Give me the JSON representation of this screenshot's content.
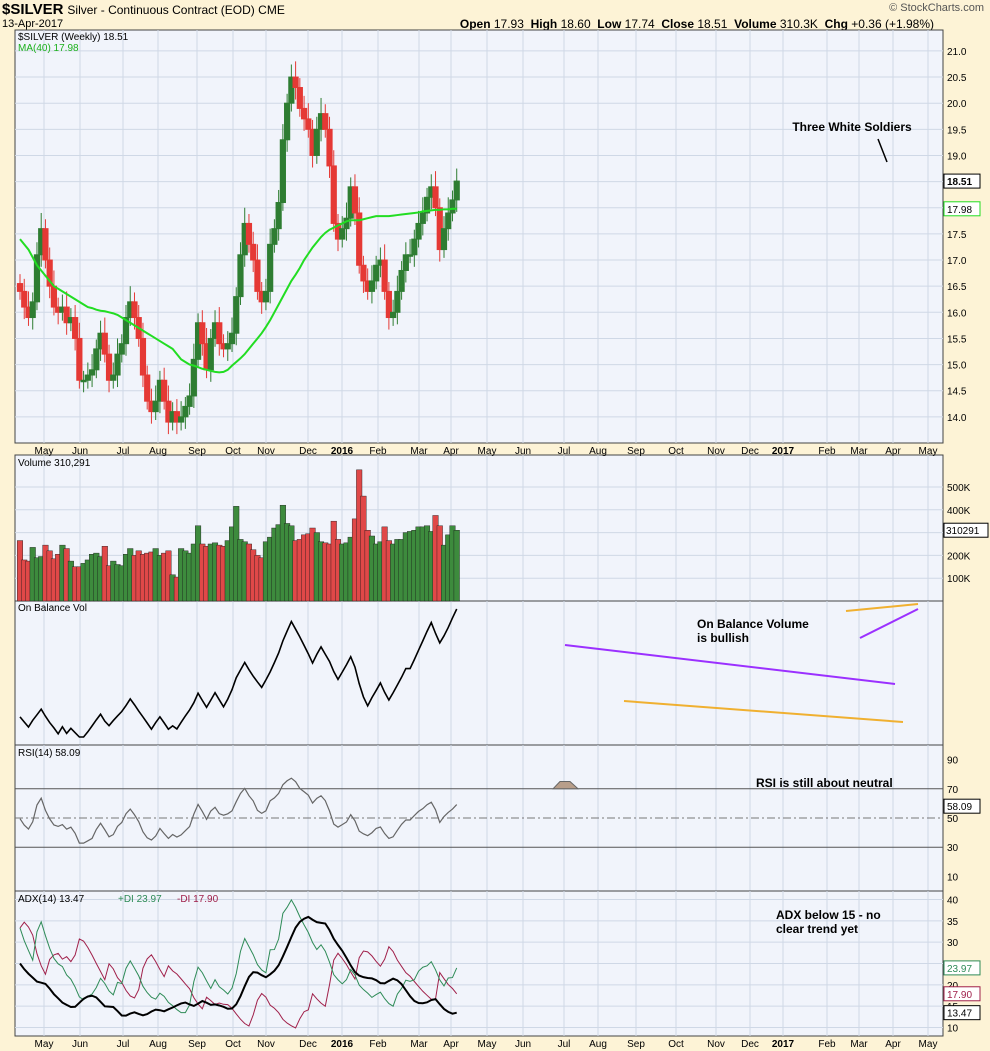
{
  "header": {
    "symbol": "$SILVER",
    "description": "Silver - Continuous Contract (EOD)",
    "exchange": "CME",
    "date": "13-Apr-2017",
    "credit": "© StockCharts.com",
    "ohlc": {
      "open_label": "Open",
      "open": "17.93",
      "high_label": "High",
      "high": "18.60",
      "low_label": "Low",
      "low": "17.74",
      "close_label": "Close",
      "close": "18.51",
      "volume_label": "Volume",
      "volume": "310.3K",
      "chg_label": "Chg",
      "chg": "+0.36 (+1.98%)"
    }
  },
  "colors": {
    "up": "#2e7d32",
    "down": "#e53935",
    "ma": "#22dd22",
    "obv": "#000000",
    "rsi": "#666666",
    "adx": "#000000",
    "pdi": "#2e8b57",
    "mdi": "#a0204a",
    "purple": "#9b30ff",
    "orange": "#f0b030"
  },
  "chart_data": [
    {
      "type": "candlestick",
      "legend": [
        "$SILVER (Weekly) 18.51",
        "MA(40) 17.98"
      ],
      "ylim": [
        13.5,
        21.4
      ],
      "y_ticks": [
        14.0,
        14.5,
        15.0,
        15.5,
        16.0,
        16.5,
        17.0,
        17.5,
        18.0,
        18.5,
        19.0,
        19.5,
        20.0,
        20.5,
        21.0
      ],
      "y_tick_labels": [
        "14.0",
        "14.5",
        "15.0",
        "15.5",
        "16.0",
        "16.5",
        "17.0",
        "17.5",
        "18.0",
        "18.5",
        "19.0",
        "19.5",
        "20.0",
        "20.5",
        "21.0"
      ],
      "last_price_label": "18.51",
      "ma_label": "17.98",
      "annotation": "Three White Soldiers",
      "closes": [
        16.4,
        16.1,
        15.9,
        16.2,
        17.1,
        17.6,
        17.0,
        16.5,
        16.1,
        16.0,
        16.1,
        15.8,
        15.9,
        15.5,
        14.7,
        14.7,
        14.8,
        14.9,
        15.3,
        15.6,
        15.2,
        14.7,
        14.8,
        15.2,
        15.4,
        15.9,
        16.2,
        15.9,
        15.5,
        14.8,
        14.3,
        14.1,
        14.3,
        14.7,
        14.3,
        13.9,
        14.1,
        13.9,
        14.0,
        14.2,
        14.4,
        15.1,
        15.8,
        15.4,
        14.9,
        15.5,
        15.8,
        15.4,
        15.3,
        15.4,
        15.6,
        16.3,
        17.1,
        17.7,
        17.3,
        17.0,
        16.4,
        16.2,
        16.4,
        17.3,
        17.6,
        18.1,
        19.3,
        20.0,
        20.5,
        20.3,
        19.9,
        19.7,
        19.5,
        19.0,
        19.5,
        19.8,
        19.5,
        18.8,
        17.7,
        17.4,
        17.6,
        17.8,
        18.4,
        17.9,
        16.9,
        16.6,
        16.4,
        16.6,
        16.9,
        17.0,
        16.4,
        15.9,
        16.0,
        16.4,
        16.8,
        17.1,
        17.1,
        17.4,
        17.7,
        17.9,
        18.2,
        18.4,
        18.0,
        17.2,
        17.6,
        17.9,
        18.15,
        18.51
      ],
      "ma40": [
        17.4,
        17.3,
        17.2,
        17.05,
        16.9,
        16.8,
        16.7,
        16.6,
        16.5,
        16.45,
        16.4,
        16.35,
        16.3,
        16.25,
        16.2,
        16.15,
        16.1,
        16.08,
        16.05,
        16.03,
        16.02,
        16.0,
        15.98,
        15.95,
        15.9,
        15.85,
        15.8,
        15.75,
        15.7,
        15.65,
        15.6,
        15.55,
        15.5,
        15.45,
        15.4,
        15.35,
        15.3,
        15.2,
        15.1,
        15.05,
        15.0,
        14.98,
        14.95,
        14.92,
        14.9,
        14.88,
        14.86,
        14.85,
        14.86,
        14.9,
        14.98,
        15.05,
        15.12,
        15.2,
        15.3,
        15.4,
        15.5,
        15.6,
        15.72,
        15.85,
        16.0,
        16.15,
        16.3,
        16.45,
        16.6,
        16.72,
        16.85,
        17.0,
        17.12,
        17.24,
        17.34,
        17.44,
        17.52,
        17.58,
        17.62,
        17.66,
        17.7,
        17.74,
        17.76,
        17.76,
        17.76,
        17.78,
        17.8,
        17.82,
        17.84,
        17.84,
        17.84,
        17.84,
        17.85,
        17.86,
        17.87,
        17.88,
        17.89,
        17.9,
        17.91,
        17.93,
        17.94,
        17.95,
        17.96,
        17.96,
        17.97,
        17.97,
        17.98,
        17.98
      ]
    },
    {
      "type": "bar",
      "legend": "Volume 310,291",
      "ylim": [
        0,
        640000
      ],
      "y_ticks": [
        100000,
        200000,
        300000,
        400000,
        500000
      ],
      "y_tick_labels": [
        "100K",
        "200K",
        "300K",
        "400K",
        "500K"
      ],
      "last_value_label": "310291",
      "values": [
        265000,
        180000,
        175000,
        235000,
        190000,
        195000,
        245000,
        220000,
        185000,
        205000,
        245000,
        230000,
        175000,
        150000,
        150000,
        165000,
        180000,
        205000,
        210000,
        195000,
        240000,
        155000,
        175000,
        160000,
        155000,
        205000,
        230000,
        200000,
        220000,
        205000,
        210000,
        215000,
        230000,
        200000,
        210000,
        220000,
        115000,
        105000,
        230000,
        220000,
        210000,
        250000,
        330000,
        250000,
        240000,
        250000,
        255000,
        245000,
        240000,
        265000,
        325000,
        415000,
        270000,
        260000,
        250000,
        225000,
        200000,
        190000,
        260000,
        280000,
        320000,
        335000,
        420000,
        340000,
        330000,
        265000,
        270000,
        290000,
        295000,
        320000,
        300000,
        260000,
        255000,
        250000,
        350000,
        270000,
        250000,
        255000,
        280000,
        360000,
        575000,
        460000,
        310000,
        285000,
        250000,
        260000,
        325000,
        265000,
        250000,
        270000,
        270000,
        300000,
        305000,
        310000,
        325000,
        325000,
        330000,
        305000,
        375000,
        330000,
        245000,
        290000,
        330000,
        310291
      ]
    },
    {
      "type": "line",
      "legend": "On Balance Vol",
      "annotation": "On Balance Volume is bullish"
    },
    {
      "type": "line",
      "legend": "RSI(14) 58.09",
      "ylim": [
        0,
        100
      ],
      "y_ticks": [
        10,
        30,
        50,
        70,
        90
      ],
      "y_tick_labels": [
        "10",
        "30",
        "50",
        "70",
        "90"
      ],
      "last_value_label": "58.09",
      "annotation": "RSI is still about neutral"
    },
    {
      "type": "line",
      "legend": {
        "adx": "ADX(14) 13.47",
        "pdi": "+DI 23.97",
        "mdi": "-DI 17.90"
      },
      "ylim": [
        8,
        42
      ],
      "y_ticks": [
        10,
        15,
        20,
        25,
        30,
        35,
        40
      ],
      "y_tick_labels": [
        "10",
        "15",
        "20",
        "25",
        "30",
        "35",
        "40"
      ],
      "last_value_labels": {
        "pdi": "23.97",
        "mdi": "17.90",
        "adx": "13.47"
      },
      "annotation": [
        "ADX below 15 - no",
        "clear trend yet"
      ]
    }
  ],
  "x_axis": {
    "labels": [
      {
        "text": "May"
      },
      {
        "text": "Jun"
      },
      {
        "text": "Jul"
      },
      {
        "text": "Aug"
      },
      {
        "text": "Sep"
      },
      {
        "text": "Oct"
      },
      {
        "text": "Nov"
      },
      {
        "text": "Dec"
      },
      {
        "text": "2016",
        "bold": true
      },
      {
        "text": "Feb"
      },
      {
        "text": "Mar"
      },
      {
        "text": "Apr"
      },
      {
        "text": "May"
      },
      {
        "text": "Jun"
      },
      {
        "text": "Jul"
      },
      {
        "text": "Aug"
      },
      {
        "text": "Sep"
      },
      {
        "text": "Oct"
      },
      {
        "text": "Nov"
      },
      {
        "text": "Dec"
      },
      {
        "text": "2017",
        "bold": true
      },
      {
        "text": "Feb"
      },
      {
        "text": "Mar"
      },
      {
        "text": "Apr"
      },
      {
        "text": "May"
      }
    ]
  }
}
